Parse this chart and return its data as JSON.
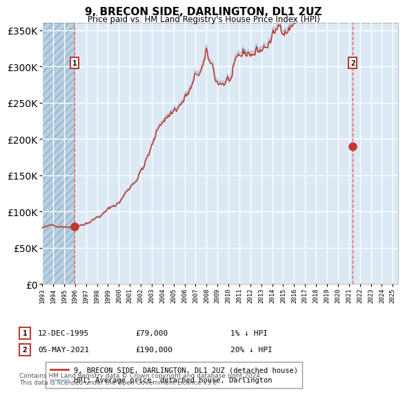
{
  "title": "9, BRECON SIDE, DARLINGTON, DL1 2UZ",
  "subtitle": "Price paid vs. HM Land Registry's House Price Index (HPI)",
  "legend_line1": "9, BRECON SIDE, DARLINGTON, DL1 2UZ (detached house)",
  "legend_line2": "HPI: Average price, detached house, Darlington",
  "annotation1_num": "1",
  "annotation1_date": "12-DEC-1995",
  "annotation1_price": "£79,000",
  "annotation1_hpi": "1% ↓ HPI",
  "annotation2_num": "2",
  "annotation2_date": "05-MAY-2021",
  "annotation2_price": "£190,000",
  "annotation2_hpi": "20% ↓ HPI",
  "footnote": "Contains HM Land Registry data © Crown copyright and database right 2024.\nThis data is licensed under the Open Government Licence v3.0.",
  "sale1_year": 1995.95,
  "sale1_price": 79000,
  "sale2_year": 2021.35,
  "sale2_price": 190000,
  "hpi_line_color": "#aec6e8",
  "price_line_color": "#c0392b",
  "bg_plot_color": "#dce9f5",
  "grid_color": "#ffffff",
  "ylim_max": 360000,
  "ylim_min": 0,
  "xlim_min": 1993.0,
  "xlim_max": 2025.5,
  "vline1_year": 1995.95,
  "vline2_year": 2021.35
}
